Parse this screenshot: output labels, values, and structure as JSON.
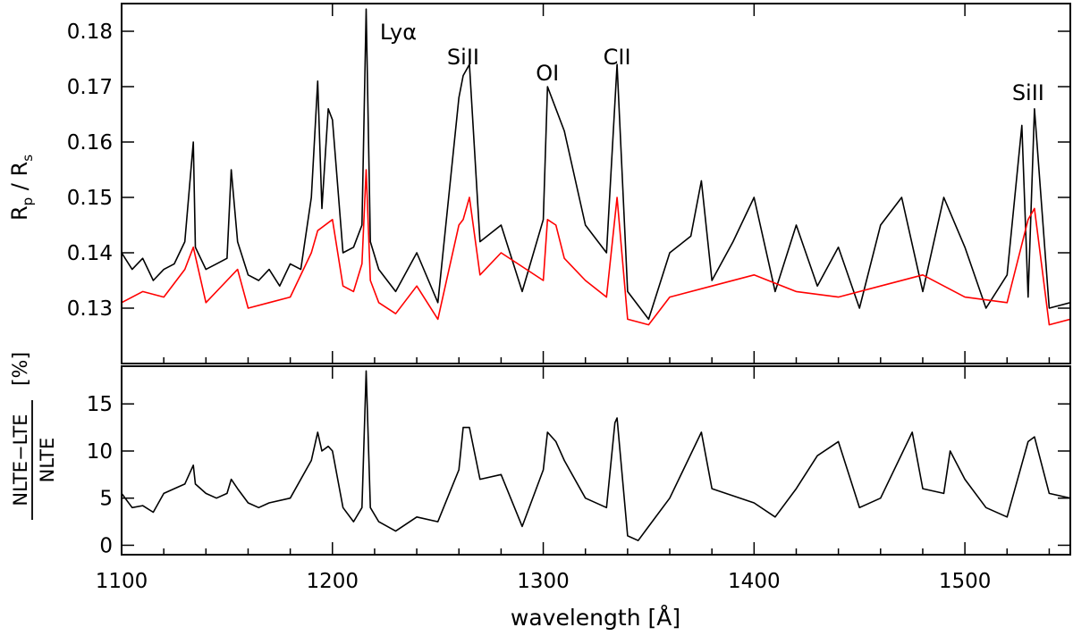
{
  "chart_data": [
    {
      "type": "line",
      "panel": "top",
      "ylabel": "R_p / R_s",
      "ylabel_parts": {
        "R1": "R",
        "sub1": "p",
        "slash": " / ",
        "R2": "R",
        "sub2": "s"
      },
      "xlim": [
        1100,
        1550
      ],
      "ylim": [
        0.12,
        0.185
      ],
      "yticks": [
        0.13,
        0.14,
        0.15,
        0.16,
        0.17,
        0.18
      ],
      "ytick_labels": [
        "0.13",
        "0.14",
        "0.15",
        "0.16",
        "0.17",
        "0.18"
      ],
      "annotations": [
        {
          "text": "Lyα",
          "x": 1216
        },
        {
          "text": "SiII",
          "x": 1262
        },
        {
          "text": "OI",
          "x": 1302
        },
        {
          "text": "CII",
          "x": 1335
        },
        {
          "text": "SiII",
          "x": 1530
        }
      ],
      "series": [
        {
          "color": "#000000",
          "x": [
            1100,
            1105,
            1110,
            1115,
            1120,
            1125,
            1130,
            1134,
            1135,
            1140,
            1145,
            1150,
            1152,
            1155,
            1160,
            1165,
            1170,
            1175,
            1180,
            1185,
            1190,
            1193,
            1195,
            1198,
            1200,
            1205,
            1210,
            1214,
            1216,
            1218,
            1222,
            1230,
            1240,
            1250,
            1260,
            1262,
            1265,
            1270,
            1280,
            1290,
            1300,
            1302,
            1306,
            1310,
            1320,
            1330,
            1335,
            1340,
            1350,
            1360,
            1370,
            1375,
            1380,
            1390,
            1400,
            1410,
            1420,
            1430,
            1440,
            1450,
            1460,
            1470,
            1480,
            1490,
            1500,
            1510,
            1520,
            1527,
            1530,
            1533,
            1540,
            1550
          ],
          "y": [
            0.14,
            0.137,
            0.139,
            0.135,
            0.137,
            0.138,
            0.142,
            0.16,
            0.141,
            0.137,
            0.138,
            0.139,
            0.155,
            0.142,
            0.136,
            0.135,
            0.137,
            0.134,
            0.138,
            0.137,
            0.15,
            0.171,
            0.148,
            0.166,
            0.164,
            0.14,
            0.141,
            0.145,
            0.184,
            0.142,
            0.137,
            0.133,
            0.14,
            0.131,
            0.168,
            0.172,
            0.174,
            0.142,
            0.145,
            0.133,
            0.146,
            0.17,
            0.166,
            0.162,
            0.145,
            0.14,
            0.174,
            0.133,
            0.128,
            0.14,
            0.143,
            0.153,
            0.135,
            0.142,
            0.15,
            0.133,
            0.145,
            0.134,
            0.141,
            0.13,
            0.145,
            0.15,
            0.133,
            0.15,
            0.141,
            0.13,
            0.136,
            0.163,
            0.132,
            0.166,
            0.13,
            0.131
          ]
        },
        {
          "color": "#ff0000",
          "x": [
            1100,
            1110,
            1120,
            1130,
            1134,
            1140,
            1150,
            1155,
            1160,
            1170,
            1180,
            1190,
            1193,
            1200,
            1205,
            1210,
            1214,
            1216,
            1218,
            1222,
            1230,
            1240,
            1250,
            1260,
            1262,
            1265,
            1270,
            1280,
            1300,
            1302,
            1306,
            1310,
            1320,
            1330,
            1335,
            1340,
            1350,
            1360,
            1380,
            1400,
            1420,
            1440,
            1460,
            1480,
            1500,
            1520,
            1530,
            1533,
            1540,
            1550
          ],
          "y": [
            0.131,
            0.133,
            0.132,
            0.137,
            0.141,
            0.131,
            0.135,
            0.137,
            0.13,
            0.131,
            0.132,
            0.14,
            0.144,
            0.146,
            0.134,
            0.133,
            0.138,
            0.155,
            0.135,
            0.131,
            0.129,
            0.134,
            0.128,
            0.145,
            0.146,
            0.15,
            0.136,
            0.14,
            0.135,
            0.146,
            0.145,
            0.139,
            0.135,
            0.132,
            0.15,
            0.128,
            0.127,
            0.132,
            0.134,
            0.136,
            0.133,
            0.132,
            0.134,
            0.136,
            0.132,
            0.131,
            0.146,
            0.148,
            0.127,
            0.128
          ]
        }
      ]
    },
    {
      "type": "line",
      "panel": "bottom",
      "ylabel": "NLTE−LTE / NLTE [%]",
      "ylabel_parts": {
        "numerator": "NLTE−LTE",
        "denominator": "NLTE",
        "unit": "[%]"
      },
      "xlabel": "wavelength [Å]",
      "xlim": [
        1100,
        1550
      ],
      "ylim": [
        -1,
        19
      ],
      "xticks": [
        1100,
        1200,
        1300,
        1400,
        1500
      ],
      "xtick_labels": [
        "1100",
        "1200",
        "1300",
        "1400",
        "1500"
      ],
      "yticks": [
        0,
        5,
        10,
        15
      ],
      "ytick_labels": [
        "0",
        "5",
        "10",
        "15"
      ],
      "series": [
        {
          "color": "#000000",
          "x": [
            1100,
            1105,
            1110,
            1115,
            1120,
            1125,
            1130,
            1134,
            1135,
            1140,
            1145,
            1150,
            1152,
            1155,
            1160,
            1165,
            1170,
            1180,
            1190,
            1193,
            1195,
            1198,
            1200,
            1205,
            1210,
            1214,
            1216,
            1218,
            1222,
            1230,
            1240,
            1250,
            1260,
            1262,
            1265,
            1270,
            1280,
            1290,
            1300,
            1302,
            1306,
            1310,
            1320,
            1330,
            1334,
            1335,
            1340,
            1345,
            1350,
            1360,
            1375,
            1380,
            1400,
            1410,
            1420,
            1430,
            1440,
            1450,
            1460,
            1475,
            1480,
            1490,
            1493,
            1500,
            1510,
            1520,
            1530,
            1533,
            1540,
            1550
          ],
          "y": [
            5.5,
            4.0,
            4.2,
            3.5,
            5.5,
            6.0,
            6.5,
            8.5,
            6.5,
            5.5,
            5.0,
            5.5,
            7.0,
            6.0,
            4.5,
            4.0,
            4.5,
            5.0,
            9.0,
            12.0,
            10.0,
            10.5,
            10.0,
            4.0,
            2.5,
            4.0,
            18.5,
            4.0,
            2.5,
            1.5,
            3.0,
            2.5,
            8.0,
            12.5,
            12.5,
            7.0,
            7.5,
            2.0,
            8.0,
            12.0,
            11.0,
            9.0,
            5.0,
            4.0,
            13.0,
            13.5,
            1.0,
            0.5,
            2.0,
            5.0,
            12.0,
            6.0,
            4.5,
            3.0,
            6.0,
            9.5,
            11.0,
            4.0,
            5.0,
            12.0,
            6.0,
            5.5,
            10.0,
            7.0,
            4.0,
            3.0,
            11.0,
            11.5,
            5.5,
            5.0
          ]
        }
      ]
    }
  ]
}
